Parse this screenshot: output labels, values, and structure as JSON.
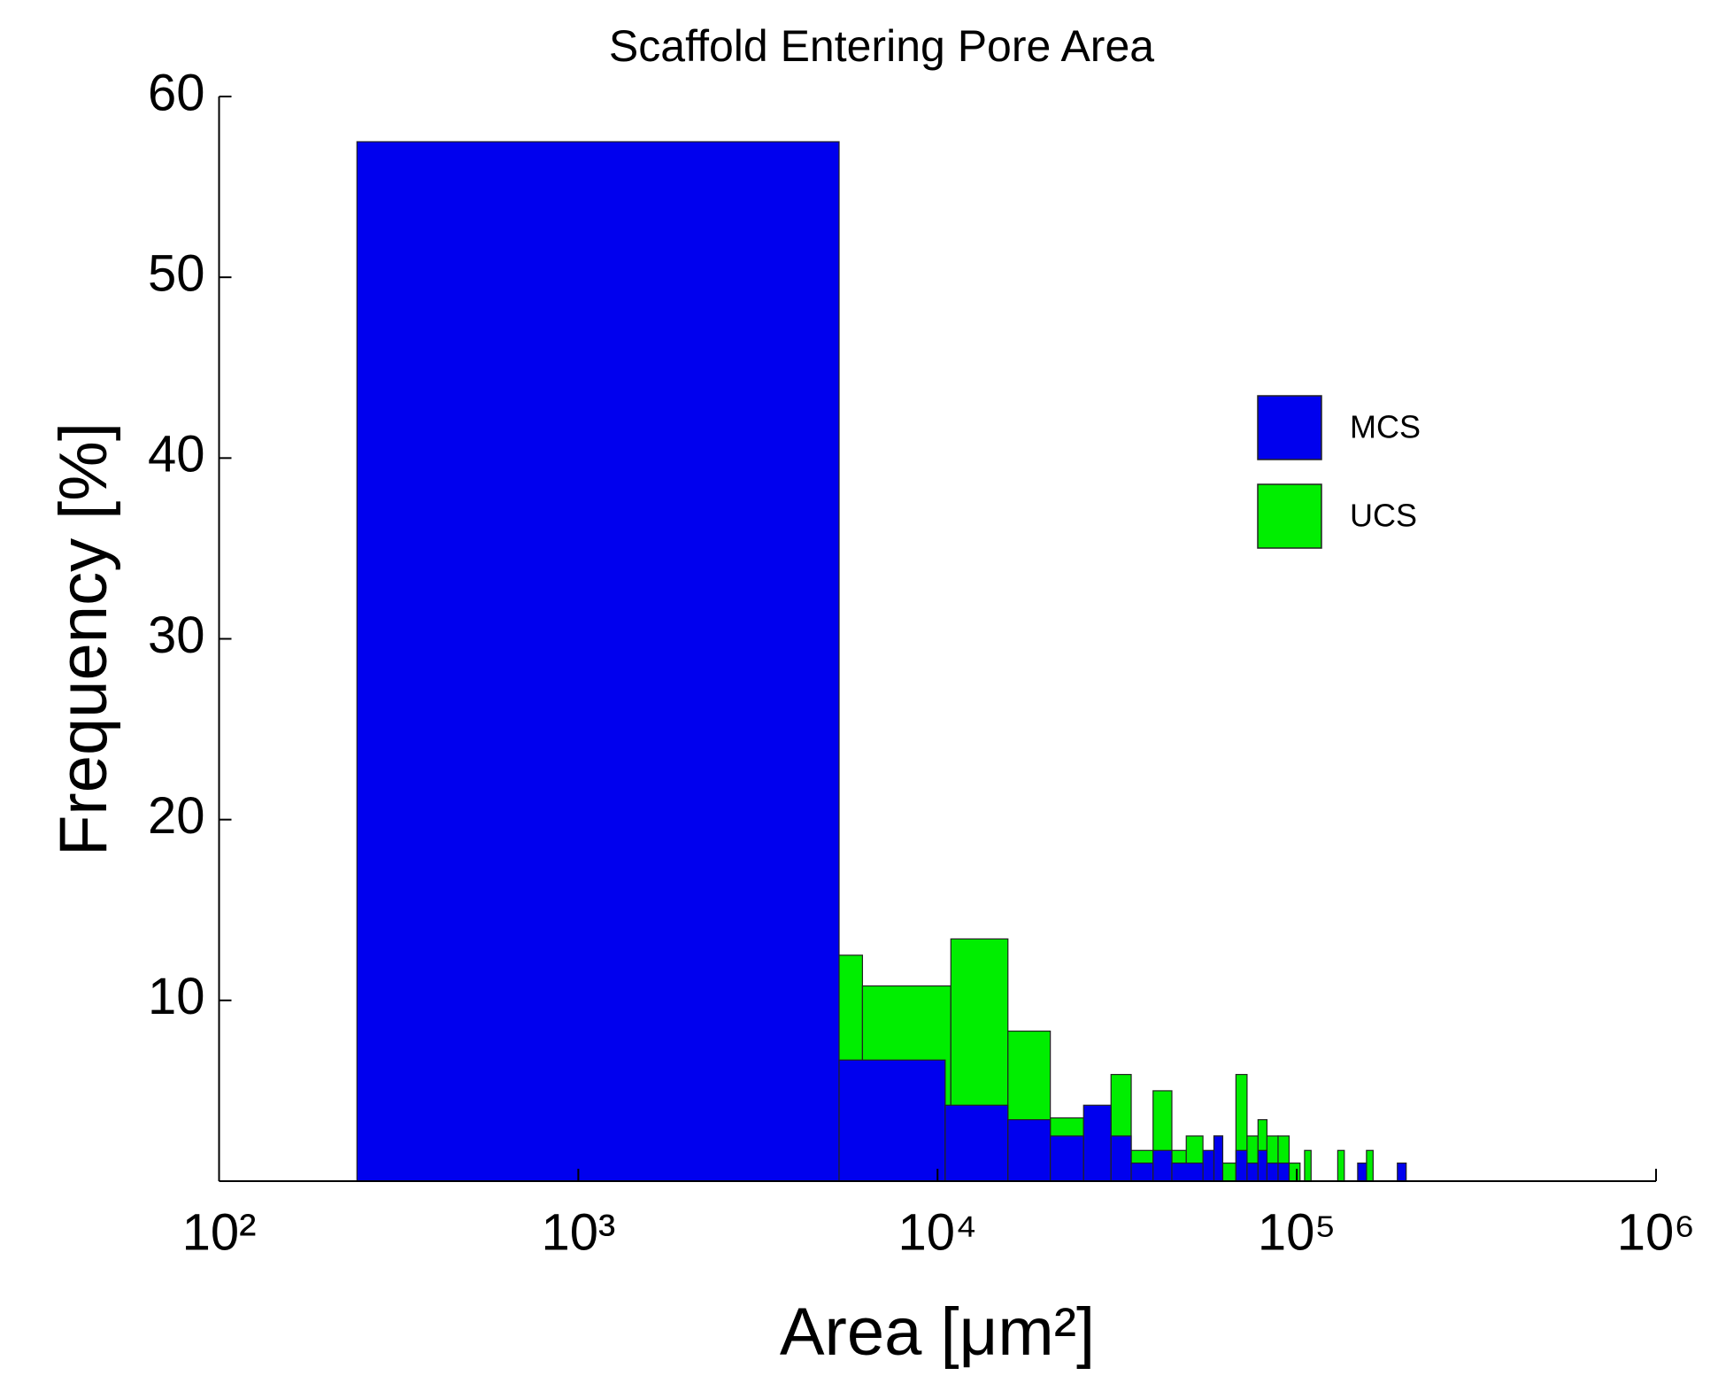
{
  "chart_data": {
    "type": "histogram",
    "title": "Scaffold Entering Pore Area",
    "x_label": "Area [μm²]",
    "y_label": "Frequency [%]",
    "xscale": "log",
    "legend": "right",
    "xlim": [
      100,
      1000000
    ],
    "ylim": [
      0,
      60
    ],
    "xticks": [
      {
        "value": 100,
        "label": "10²"
      },
      {
        "value": 1000,
        "label": "10³"
      },
      {
        "value": 10000,
        "label": "10⁴"
      },
      {
        "value": 100000,
        "label": "10⁵"
      },
      {
        "value": 1000000,
        "label": "10⁶"
      }
    ],
    "yticks": [
      10,
      20,
      30,
      40,
      50,
      60
    ],
    "series": [
      {
        "name": "UCS",
        "color": "#00ee00",
        "bins": [
          1385,
          6180,
          10890,
          15700,
          20600,
          25500,
          30400,
          34600,
          39800,
          44900,
          49240,
          54800,
          58800,
          62200,
          67700,
          72700,
          78000,
          82600,
          88700,
          95200,
          102100,
          105100,
          109600,
          130000,
          135600,
          156300,
          163100
        ],
        "values": [
          12.5,
          10.8,
          13.4,
          8.3,
          3.5,
          2.5,
          5.9,
          1.7,
          5,
          1.7,
          2.5,
          1,
          2.5,
          1,
          5.9,
          2.5,
          3.4,
          2.5,
          2.5,
          1,
          0,
          1.7,
          0,
          1.7,
          0,
          1.7
        ]
      },
      {
        "name": "MCS",
        "color": "#0000ee",
        "bins": [
          242,
          5320,
          10500,
          15700,
          20600,
          25500,
          30400,
          34600,
          39800,
          44900,
          54800,
          58800,
          62200,
          67700,
          72700,
          78000,
          82600,
          88700,
          95200,
          102100,
          147700,
          156300,
          190500,
          201600
        ],
        "values": [
          57.5,
          6.7,
          4.2,
          3.4,
          2.5,
          4.2,
          2.5,
          1,
          1.7,
          1,
          1.7,
          2.5,
          0,
          1.7,
          1,
          1.7,
          1,
          1,
          0,
          0,
          1,
          0,
          1
        ]
      }
    ]
  }
}
